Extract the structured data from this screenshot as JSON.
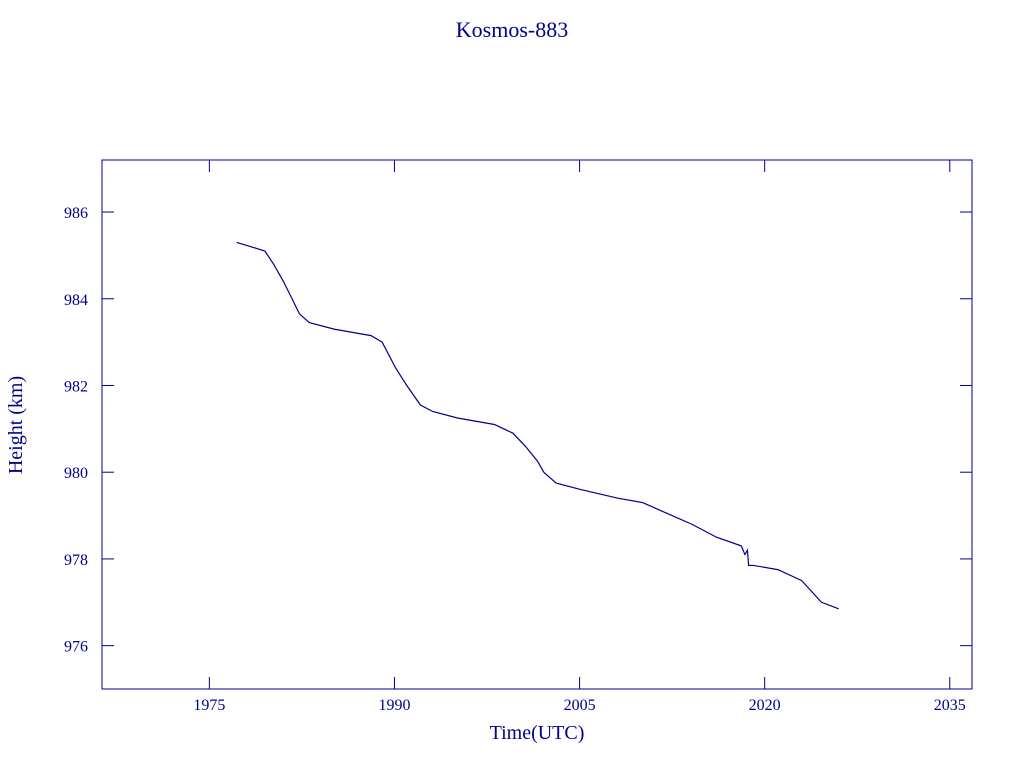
{
  "chart_data": {
    "type": "line",
    "title": "Kosmos-883",
    "x_label": "Time(UTC)",
    "y_label": "Height (km)",
    "x": [
      1977.2,
      1977.8,
      1979.5,
      1980.2,
      1981.0,
      1981.7,
      1982.3,
      1983.1,
      1985.1,
      1988.1,
      1989.0,
      1990.1,
      1991.0,
      1992.1,
      1993.1,
      1995.1,
      1998.1,
      1999.6,
      2000.6,
      2001.6,
      2002.1,
      2003.1,
      2005.1,
      2008.1,
      2010.1,
      2012.1,
      2014.1,
      2016.1,
      2018.1,
      2018.4,
      2018.6,
      2018.7,
      2019.1,
      2021.1,
      2023.0,
      2024.6,
      2026.0
    ],
    "series": [
      {
        "name": "Height",
        "color": "#00008b",
        "values": [
          985.3,
          985.25,
          985.1,
          984.8,
          984.4,
          984.0,
          983.65,
          983.45,
          983.3,
          983.15,
          983.0,
          982.4,
          982.0,
          981.55,
          981.4,
          981.25,
          981.1,
          980.9,
          980.6,
          980.25,
          980.0,
          979.75,
          979.6,
          979.4,
          979.3,
          979.05,
          978.8,
          978.5,
          978.3,
          978.1,
          978.2,
          977.85,
          977.85,
          977.75,
          977.5,
          977.0,
          976.85
        ]
      }
    ],
    "xlim": [
      1966.3,
      2036.8
    ],
    "ylim": [
      975.0,
      987.2
    ],
    "xticks": [
      1975,
      1990,
      2005,
      2020,
      2035
    ],
    "yticks": [
      976,
      978,
      980,
      982,
      984,
      986
    ]
  }
}
